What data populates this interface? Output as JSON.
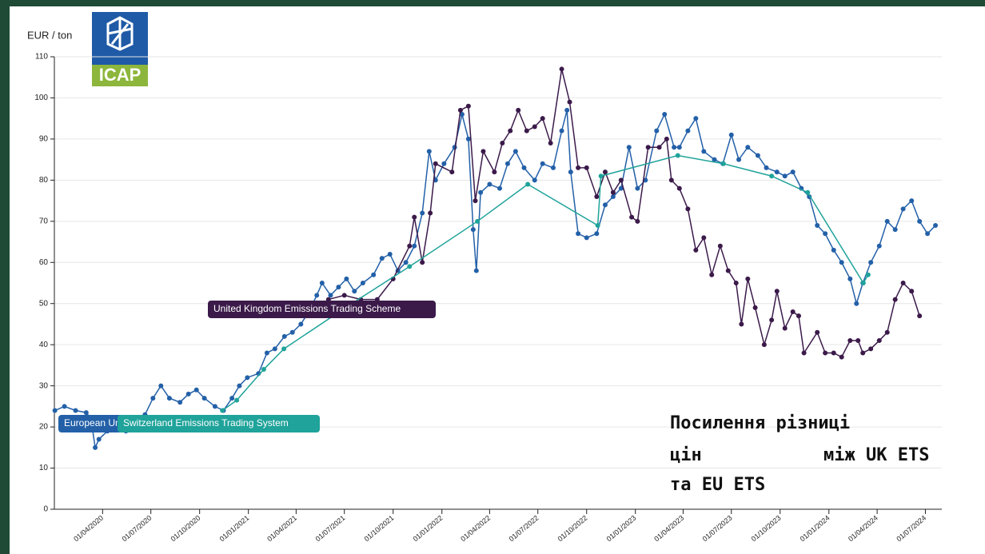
{
  "chart_data": {
    "type": "line",
    "y_label": "EUR / ton",
    "logo_text": "ICAP",
    "annotation": [
      "Посилення різниці",
      "цін",
      "між UK ETS",
      "та EU ETS"
    ],
    "xlim": [
      "2020-01-01",
      "2024-08-01"
    ],
    "xticks": [
      {
        "value": "2020-04-01",
        "label": "01/04/2020"
      },
      {
        "value": "2020-07-01",
        "label": "01/07/2020"
      },
      {
        "value": "2020-10-01",
        "label": "01/10/2020"
      },
      {
        "value": "2021-01-01",
        "label": "01/01/2021"
      },
      {
        "value": "2021-04-01",
        "label": "01/04/2021"
      },
      {
        "value": "2021-07-01",
        "label": "01/07/2021"
      },
      {
        "value": "2021-10-01",
        "label": "01/10/2021"
      },
      {
        "value": "2022-01-01",
        "label": "01/01/2022"
      },
      {
        "value": "2022-04-01",
        "label": "01/04/2022"
      },
      {
        "value": "2022-07-01",
        "label": "01/07/2022"
      },
      {
        "value": "2022-10-01",
        "label": "01/10/2022"
      },
      {
        "value": "2023-01-01",
        "label": "01/01/2023"
      },
      {
        "value": "2023-04-01",
        "label": "01/04/2023"
      },
      {
        "value": "2023-07-01",
        "label": "01/07/2023"
      },
      {
        "value": "2023-10-01",
        "label": "01/10/2023"
      },
      {
        "value": "2024-01-01",
        "label": "01/01/2024"
      },
      {
        "value": "2024-04-01",
        "label": "01/04/2024"
      },
      {
        "value": "2024-07-01",
        "label": "01/07/2024"
      }
    ],
    "ylim": [
      0,
      110
    ],
    "yticks": [
      0,
      10,
      20,
      30,
      40,
      50,
      60,
      70,
      80,
      90,
      100,
      110
    ],
    "grid": true,
    "series": [
      {
        "name": "European Union Emissions Trading System",
        "color": "#2360a8",
        "x": [
          "2020-01-02",
          "2020-01-20",
          "2020-02-10",
          "2020-03-01",
          "2020-03-10",
          "2020-03-18",
          "2020-03-25",
          "2020-04-10",
          "2020-04-25",
          "2020-05-15",
          "2020-06-01",
          "2020-06-20",
          "2020-07-05",
          "2020-07-20",
          "2020-08-05",
          "2020-08-25",
          "2020-09-10",
          "2020-09-25",
          "2020-10-10",
          "2020-10-30",
          "2020-11-15",
          "2020-12-01",
          "2020-12-15",
          "2020-12-30",
          "2021-01-20",
          "2021-02-05",
          "2021-02-20",
          "2021-03-10",
          "2021-03-25",
          "2021-04-10",
          "2021-04-25",
          "2021-05-10",
          "2021-05-20",
          "2021-06-05",
          "2021-06-20",
          "2021-07-05",
          "2021-07-20",
          "2021-08-05",
          "2021-08-25",
          "2021-09-10",
          "2021-09-25",
          "2021-10-10",
          "2021-10-25",
          "2021-11-10",
          "2021-11-25",
          "2021-12-08",
          "2021-12-20",
          "2022-01-05",
          "2022-01-25",
          "2022-02-08",
          "2022-02-20",
          "2022-03-01",
          "2022-03-07",
          "2022-03-15",
          "2022-04-01",
          "2022-04-20",
          "2022-05-05",
          "2022-05-20",
          "2022-06-05",
          "2022-06-25",
          "2022-07-10",
          "2022-07-30",
          "2022-08-15",
          "2022-08-25",
          "2022-09-01",
          "2022-09-15",
          "2022-10-01",
          "2022-10-20",
          "2022-11-05",
          "2022-11-20",
          "2022-12-05",
          "2022-12-20",
          "2023-01-05",
          "2023-01-20",
          "2023-02-10",
          "2023-02-25",
          "2023-03-15",
          "2023-03-25",
          "2023-04-10",
          "2023-04-25",
          "2023-05-10",
          "2023-05-30",
          "2023-06-15",
          "2023-07-01",
          "2023-07-15",
          "2023-08-01",
          "2023-08-20",
          "2023-09-05",
          "2023-09-25",
          "2023-10-10",
          "2023-10-25",
          "2023-11-10",
          "2023-11-25",
          "2023-12-10",
          "2023-12-25",
          "2024-01-10",
          "2024-01-25",
          "2024-02-10",
          "2024-02-22",
          "2024-03-05",
          "2024-03-20",
          "2024-04-05",
          "2024-04-20",
          "2024-05-05",
          "2024-05-20",
          "2024-06-05",
          "2024-06-20",
          "2024-07-05",
          "2024-07-20"
        ],
        "values": [
          24,
          25,
          24,
          23.5,
          22,
          15,
          17,
          19,
          20,
          19,
          21,
          23,
          27,
          30,
          27,
          26,
          28,
          29,
          27,
          25,
          24,
          27,
          30,
          32,
          33,
          38,
          39,
          42,
          43,
          45,
          48,
          52,
          55,
          52,
          54,
          56,
          53,
          55,
          57,
          61,
          62,
          58,
          60,
          64,
          72,
          87,
          80,
          84,
          88,
          96,
          90,
          68,
          58,
          77,
          79,
          78,
          84,
          87,
          83,
          80,
          84,
          83,
          92,
          97,
          82,
          67,
          66,
          67,
          74,
          76,
          78,
          88,
          78,
          80,
          92,
          96,
          88,
          88,
          92,
          95,
          87,
          85,
          84,
          91,
          85,
          88,
          86,
          83,
          82,
          81,
          82,
          78,
          76,
          69,
          67,
          63,
          60,
          56,
          50,
          55,
          60,
          64,
          70,
          68,
          73,
          75,
          70,
          67,
          69
        ]
      },
      {
        "name": "United Kingdom Emissions Trading Scheme",
        "color": "#3b1a4a",
        "x": [
          "2021-06-01",
          "2021-07-01",
          "2021-08-01",
          "2021-09-01",
          "2021-10-01",
          "2021-11-01",
          "2021-11-10",
          "2021-11-25",
          "2021-12-10",
          "2021-12-20",
          "2022-01-20",
          "2022-02-05",
          "2022-02-20",
          "2022-03-05",
          "2022-03-20",
          "2022-04-10",
          "2022-04-25",
          "2022-05-10",
          "2022-05-25",
          "2022-06-10",
          "2022-06-25",
          "2022-07-10",
          "2022-07-25",
          "2022-08-15",
          "2022-08-30",
          "2022-09-15",
          "2022-10-01",
          "2022-10-20",
          "2022-11-05",
          "2022-11-20",
          "2022-12-05",
          "2022-12-25",
          "2023-01-05",
          "2023-01-25",
          "2023-02-15",
          "2023-03-01",
          "2023-03-10",
          "2023-03-25",
          "2023-04-10",
          "2023-04-25",
          "2023-05-10",
          "2023-05-25",
          "2023-06-10",
          "2023-06-25",
          "2023-07-10",
          "2023-07-20",
          "2023-08-01",
          "2023-08-15",
          "2023-09-01",
          "2023-09-15",
          "2023-09-25",
          "2023-10-10",
          "2023-10-25",
          "2023-11-05",
          "2023-11-15",
          "2023-12-10",
          "2023-12-25",
          "2024-01-10",
          "2024-01-25",
          "2024-02-10",
          "2024-02-25",
          "2024-03-05",
          "2024-03-20",
          "2024-04-05",
          "2024-04-20",
          "2024-05-05",
          "2024-05-20",
          "2024-06-05",
          "2024-06-20"
        ],
        "values": [
          51,
          52,
          51,
          51,
          56,
          64,
          71,
          60,
          72,
          84,
          82,
          97,
          98,
          75,
          87,
          82,
          89,
          92,
          97,
          92,
          93,
          95,
          89,
          107,
          99,
          83,
          83,
          76,
          82,
          77,
          80,
          71,
          70,
          88,
          88,
          90,
          80,
          78,
          73,
          63,
          66,
          57,
          64,
          58,
          55,
          45,
          56,
          49,
          40,
          46,
          53,
          44,
          48,
          47,
          38,
          43,
          38,
          38,
          37,
          41,
          41,
          38,
          39,
          41,
          43,
          51,
          55,
          53,
          47
        ]
      },
      {
        "name": "Switzerland Emissions Trading System",
        "color": "#1fa39a",
        "x": [
          "2020-11-13",
          "2020-12-10",
          "2021-01-30",
          "2021-03-09",
          "2021-07-15",
          "2021-11-01",
          "2022-03-09",
          "2022-06-12",
          "2022-10-22",
          "2022-10-28",
          "2023-03-22",
          "2023-06-16",
          "2023-09-15",
          "2023-11-22",
          "2024-03-06",
          "2024-03-15"
        ],
        "values": [
          24,
          26.5,
          34,
          39,
          50,
          59,
          70,
          79,
          69,
          81,
          86,
          84,
          81,
          77,
          55,
          57
        ]
      }
    ]
  }
}
